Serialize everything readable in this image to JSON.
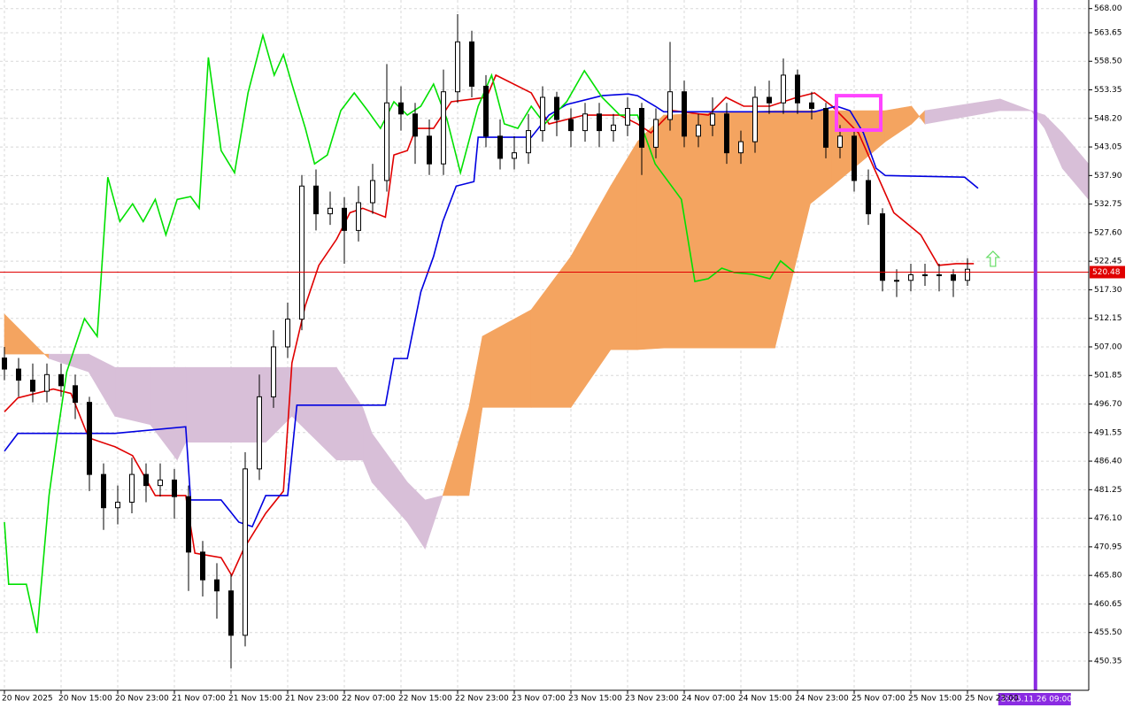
{
  "chart_data": {
    "type": "candlestick",
    "xlim": [
      -0.625,
      153.125
    ],
    "ylim": [
      445.08,
      569.55
    ],
    "grid": true,
    "xticks": [
      {
        "value": 0,
        "label": "20 Nov 2025"
      },
      {
        "value": 8,
        "label": "20 Nov 15:00"
      },
      {
        "value": 16,
        "label": "20 Nov 23:00"
      },
      {
        "value": 24,
        "label": "21 Nov 07:00"
      },
      {
        "value": 32,
        "label": "21 Nov 15:00"
      },
      {
        "value": 40,
        "label": "21 Nov 23:00"
      },
      {
        "value": 48,
        "label": "22 Nov 07:00"
      },
      {
        "value": 56,
        "label": "22 Nov 15:00"
      },
      {
        "value": 64,
        "label": "22 Nov 23:00"
      },
      {
        "value": 72,
        "label": "23 Nov 07:00"
      },
      {
        "value": 80,
        "label": "23 Nov 15:00"
      },
      {
        "value": 88,
        "label": "23 Nov 23:00"
      },
      {
        "value": 96,
        "label": "24 Nov 07:00"
      },
      {
        "value": 104,
        "label": "24 Nov 15:00"
      },
      {
        "value": 112,
        "label": "24 Nov 23:00"
      },
      {
        "value": 120,
        "label": "25 Nov 07:00"
      },
      {
        "value": 128,
        "label": "25 Nov 15:00"
      },
      {
        "value": 136,
        "label": "25 Nov 23:00"
      }
    ],
    "yticks": [
      {
        "value": 568,
        "label": "568.00"
      },
      563.65,
      {
        "value": 558.5,
        "label": "558.50"
      },
      553.35,
      {
        "value": 548.2,
        "label": "548.20"
      },
      543.05,
      {
        "value": 537.9,
        "label": "537.90"
      },
      532.75,
      {
        "value": 527.6,
        "label": "527.60"
      },
      522.45,
      {
        "value": 517.3,
        "label": "517.30"
      },
      512.15,
      {
        "value": 507,
        "label": "507.00"
      },
      501.85,
      {
        "value": 496.7,
        "label": "496.70"
      },
      491.55,
      {
        "value": 486.4,
        "label": "486.40"
      },
      481.25,
      {
        "value": 476.1,
        "label": "476.10"
      },
      470.95,
      {
        "value": 465.8,
        "label": "465.80"
      },
      460.65,
      {
        "value": 455.5,
        "label": "455.50"
      },
      450.35
    ],
    "x": [
      0,
      2,
      4,
      6,
      8,
      10,
      12,
      14,
      16,
      18,
      20,
      22,
      24,
      26,
      28,
      30,
      32,
      34,
      36,
      38,
      40,
      42,
      44,
      46,
      48,
      50,
      52,
      54,
      56,
      58,
      60,
      62,
      64,
      66,
      68,
      70,
      72,
      74,
      76,
      78,
      80,
      82,
      84,
      86,
      88,
      90,
      92,
      94,
      96,
      98,
      100,
      102,
      104,
      106,
      108,
      110,
      112,
      114,
      116,
      118,
      120,
      122,
      124,
      126,
      128,
      130,
      132,
      134,
      136
    ],
    "open": [
      505,
      503,
      501,
      499,
      502,
      500,
      497,
      484,
      478,
      479,
      484,
      482,
      483,
      480,
      470,
      465,
      463,
      455,
      485,
      498,
      507,
      512,
      536,
      531,
      532,
      528,
      533,
      537,
      551,
      549,
      545,
      540,
      553,
      562,
      554,
      545,
      541,
      542,
      546,
      552,
      548,
      546,
      549,
      546,
      547,
      550,
      543,
      548,
      553,
      545,
      547,
      549,
      542,
      544,
      552,
      551,
      556,
      551,
      550,
      543,
      545,
      537,
      531,
      519,
      519,
      520,
      520,
      520,
      519
    ],
    "high": [
      507,
      505,
      504,
      504,
      504,
      502,
      498,
      486,
      482,
      487,
      486,
      486,
      485,
      482,
      472,
      468,
      466,
      488,
      502,
      510,
      515,
      538,
      539,
      535,
      534,
      536,
      540,
      558,
      554,
      551,
      548,
      557,
      567,
      564,
      556,
      548,
      545,
      549,
      554,
      553,
      550,
      551,
      551,
      549,
      552,
      551,
      550,
      562,
      555,
      549,
      552,
      551,
      546,
      554,
      555,
      559,
      557,
      553,
      551,
      547,
      546,
      539,
      532,
      521,
      522,
      522,
      522,
      521,
      523
    ],
    "low": [
      501,
      498,
      497,
      497,
      498,
      494,
      481,
      474,
      475,
      477,
      479,
      480,
      476,
      463,
      462,
      458,
      449,
      453,
      483,
      496,
      505,
      510,
      528,
      529,
      522,
      526,
      531,
      535,
      546,
      540,
      538,
      538,
      551,
      552,
      543,
      539,
      539,
      540,
      544,
      545,
      543,
      544,
      543,
      544,
      545,
      538,
      541,
      546,
      543,
      543,
      545,
      540,
      540,
      542,
      549,
      549,
      549,
      548,
      541,
      541,
      535,
      529,
      517,
      516,
      517,
      518,
      517,
      516,
      518
    ],
    "close": [
      503,
      501,
      499,
      502,
      500,
      497,
      484,
      478,
      479,
      484,
      482,
      483,
      480,
      470,
      465,
      463,
      455,
      485,
      498,
      507,
      512,
      536,
      531,
      532,
      528,
      533,
      537,
      551,
      549,
      545,
      540,
      553,
      562,
      554,
      545,
      541,
      542,
      546,
      552,
      548,
      546,
      549,
      546,
      547,
      550,
      543,
      548,
      553,
      545,
      547,
      549,
      542,
      544,
      552,
      551,
      556,
      551,
      550,
      543,
      545,
      537,
      531,
      519,
      519,
      520,
      520,
      520,
      519,
      521
    ],
    "cloud": {
      "bull_color": "#f4a460",
      "bear_color": "#d8bfd8",
      "x": [
        0,
        5,
        6.3,
        11.9,
        15.6,
        20.6,
        24.4,
        25.6,
        36.9,
        40.6,
        46.9,
        50.6,
        51.9,
        56.9,
        59.4,
        61.9,
        65.6,
        67.5,
        74.4,
        80,
        85.6,
        89.4,
        93.1,
        108.8,
        113.8,
        116.9,
        124.4,
        128.1,
        130,
        140.6,
        145,
        146.9,
        149.4,
        153.1
      ],
      "span_a": [
        512.9,
        506.5,
        504.9,
        502.5,
        494.5,
        493.0,
        486.6,
        489.8,
        489.8,
        494.5,
        486.6,
        486.6,
        482.6,
        475.4,
        470.6,
        480.2,
        496.1,
        508.9,
        513.7,
        523.3,
        536.0,
        544.0,
        548.8,
        549.6,
        549.6,
        549.6,
        549.6,
        550.4,
        547.2,
        549.6,
        549.6,
        546.4,
        539.2,
        533.6
      ],
      "span_b": [
        505.7,
        505.7,
        505.7,
        505.7,
        503.3,
        503.3,
        503.3,
        503.3,
        503.3,
        503.3,
        503.3,
        496.1,
        491.4,
        482.6,
        479.4,
        480.2,
        480.2,
        496.1,
        496.1,
        496.1,
        506.5,
        506.5,
        506.8,
        506.8,
        532.8,
        536.0,
        544.0,
        547.2,
        549.6,
        551.7,
        549.6,
        548.8,
        545.6,
        540.0
      ]
    },
    "lines": [
      {
        "color": "#e00000",
        "x": [
          0,
          1.9,
          6.9,
          9.4,
          11.9,
          15.6,
          18.1,
          21.3,
          25.6,
          26.9,
          30.6,
          32.1,
          33.8,
          36.9,
          39.4,
          40.6,
          42.5,
          44.4,
          46.9,
          48.8,
          50.6,
          53.8,
          55,
          56.9,
          58.1,
          60.6,
          63.1,
          68.1,
          69.4,
          74.4,
          76.9,
          81.9,
          86.9,
          89.4,
          91.3,
          94.4,
          99.4,
          101.9,
          104.4,
          108.1,
          111.9,
          114.4,
          116.9,
          120.6,
          123.1,
          125.6,
          129.4,
          131.9,
          134.4,
          136.9
        ],
        "values": [
          495.3,
          497.8,
          499.4,
          498.6,
          490.6,
          489.0,
          487.4,
          480.2,
          480.2,
          469.8,
          469.0,
          465.8,
          470.6,
          477.0,
          481.0,
          504.1,
          514.5,
          521.7,
          526.4,
          531.2,
          532.0,
          530.4,
          541.6,
          542.4,
          546.4,
          546.4,
          551.2,
          552.0,
          556.0,
          552.8,
          547.2,
          548.8,
          548.8,
          547.2,
          545.6,
          549.6,
          548.8,
          552.0,
          550.4,
          550.4,
          552.0,
          552.8,
          550.4,
          545.6,
          538.4,
          531.2,
          527.2,
          521.7,
          522.0,
          522.0
        ]
      },
      {
        "color": "#0000e0",
        "x": [
          0,
          1.9,
          15.6,
          25.6,
          26.3,
          30.6,
          33.1,
          35,
          36.9,
          40,
          41.3,
          53.8,
          55,
          56.9,
          58.8,
          60.6,
          61.9,
          63.8,
          66.3,
          66.9,
          74.4,
          76.9,
          79.4,
          84.4,
          88.1,
          89.4,
          91.9,
          93.1,
          114.4,
          117.5,
          119.4,
          121.3,
          123.1,
          124.4,
          135.6,
          137.5
        ],
        "values": [
          488.2,
          491.4,
          491.4,
          492.6,
          479.4,
          479.4,
          475.4,
          474.6,
          480.2,
          480.2,
          496.5,
          496.5,
          504.9,
          504.9,
          516.9,
          523.3,
          529.6,
          536.0,
          536.8,
          544.8,
          544.8,
          548.8,
          550.7,
          552.3,
          552.6,
          552.3,
          550.4,
          549.4,
          549.4,
          550.4,
          549.6,
          545.6,
          539.2,
          537.9,
          537.6,
          535.6
        ]
      },
      {
        "color": "#00e000",
        "x": [
          0,
          0.6,
          3.1,
          4.6,
          6.3,
          7.5,
          8.8,
          11.3,
          13.1,
          14.6,
          16.3,
          18.1,
          19.6,
          21.3,
          22.8,
          24.4,
          26.3,
          27.5,
          28.8,
          30.6,
          32.5,
          34.4,
          36.5,
          38.1,
          39.4,
          40.6,
          42.5,
          43.8,
          45.6,
          47.5,
          49.4,
          51.3,
          53.1,
          55,
          56.9,
          58.8,
          60.6,
          62.5,
          64.4,
          66.9,
          68.8,
          70.6,
          72.5,
          74.4,
          76.3,
          79.4,
          81.9,
          84.4,
          86.9,
          89.4,
          91.9,
          95.6,
          97.5,
          99.4,
          101.3,
          103.1,
          105.6,
          108.1,
          109.6,
          111.6
        ],
        "values": [
          475.4,
          464.2,
          464.2,
          455.4,
          480.2,
          491.4,
          502.5,
          512.1,
          508.9,
          537.6,
          529.6,
          532.8,
          529.6,
          533.6,
          527.2,
          533.6,
          534.1,
          532.0,
          559.2,
          542.4,
          538.4,
          552.8,
          563.2,
          556.0,
          559.7,
          554.4,
          546.4,
          540.0,
          541.6,
          549.6,
          552.8,
          549.6,
          546.4,
          551.2,
          548.8,
          550.4,
          554.4,
          548.0,
          538.4,
          550.4,
          556.0,
          547.2,
          546.4,
          550.4,
          547.2,
          551.2,
          556.8,
          552.0,
          548.8,
          548.8,
          540.0,
          533.6,
          518.8,
          519.3,
          521.2,
          520.4,
          520.1,
          519.3,
          522.5,
          520.4
        ]
      }
    ],
    "price_line": {
      "value": 520.48,
      "color": "#e00000"
    },
    "vertical_line": {
      "x": 145.6,
      "label": "2025.11.26 09:00",
      "color": "#8a2be2"
    },
    "rectangle": {
      "x": [
        117.5,
        123.75
      ],
      "y": [
        546.1,
        552.3
      ],
      "color": "#ff44ff"
    },
    "arrow": {
      "x": 139.6,
      "value": 522.8,
      "color": "#66dd66"
    }
  }
}
